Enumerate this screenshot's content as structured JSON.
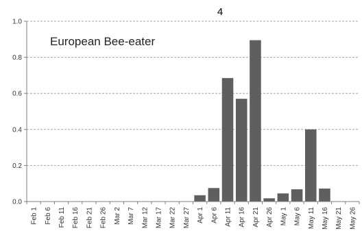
{
  "chart_data": {
    "type": "bar",
    "title": "4",
    "annotation": "European Bee-eater",
    "xlabel": "",
    "ylabel": "",
    "ylim": [
      0,
      1.0
    ],
    "yticks": [
      "0.0",
      "0.2",
      "0.4",
      "0.6",
      "0.8",
      "1.0"
    ],
    "grid": "horizontal-dashed",
    "categories": [
      "Feb 1",
      "Feb 6",
      "Feb 11",
      "Feb 16",
      "Feb 21",
      "Feb 26",
      "Mar 2",
      "Mar 7",
      "Mar 12",
      "Mar 17",
      "Mar 22",
      "Mar 27",
      "Apr 1",
      "Apr 6",
      "Apr 11",
      "Apr 16",
      "Apr 21",
      "Apr 26",
      "May 1",
      "May 6",
      "May 11",
      "May 16",
      "May 21",
      "May 26"
    ],
    "values": [
      0,
      0,
      0,
      0,
      0,
      0,
      0,
      0,
      0,
      0,
      0,
      0,
      0.035,
      0.075,
      0.685,
      0.57,
      0.895,
      0.018,
      0.045,
      0.068,
      0.4,
      0.072,
      0,
      0
    ],
    "bar_color": "#5f5f5f"
  }
}
